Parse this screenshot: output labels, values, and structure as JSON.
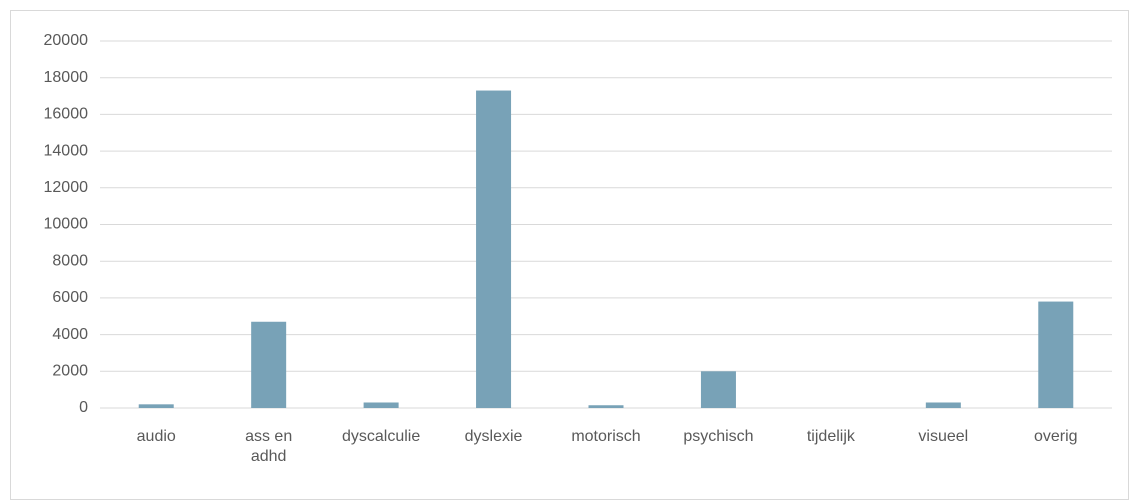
{
  "chart_data": {
    "type": "bar",
    "categories": [
      "audio",
      "ass en adhd",
      "dyscalculie",
      "dyslexie",
      "motorisch",
      "psychisch",
      "tijdelijk",
      "visueel",
      "overig"
    ],
    "values": [
      200,
      4700,
      300,
      17300,
      150,
      2000,
      0,
      300,
      5800
    ],
    "color": "#78a2b7",
    "ylim": [
      0,
      20000
    ],
    "yticks": [
      0,
      2000,
      4000,
      6000,
      8000,
      10000,
      12000,
      14000,
      16000,
      18000,
      20000
    ],
    "grid": true
  }
}
